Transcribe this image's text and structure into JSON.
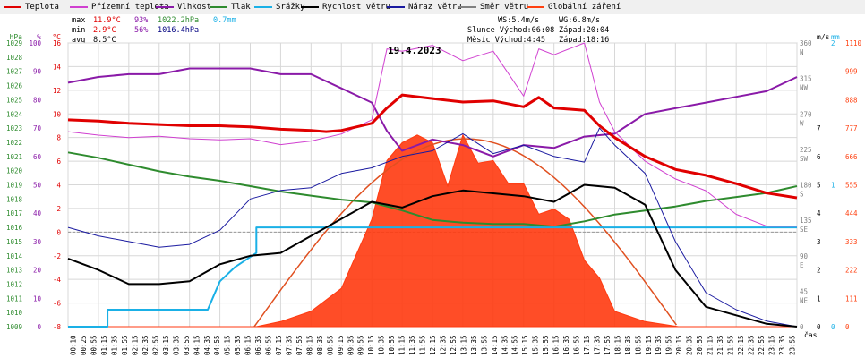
{
  "legend": [
    {
      "label": "Teplota",
      "color": "#e00000"
    },
    {
      "label": "Přízemní teplota",
      "color": "#d040d0"
    },
    {
      "label": "Vlhkost",
      "color": "#8a1aa8"
    },
    {
      "label": "Tlak",
      "color": "#2e8b2e"
    },
    {
      "label": "Srážky",
      "color": "#1ab0e6"
    },
    {
      "label": "Rychlost větru",
      "color": "#000000"
    },
    {
      "label": "Náraz větru",
      "color": "#1a1aa0"
    },
    {
      "label": "Směr větru",
      "color": "#808080"
    },
    {
      "label": "Globální záření",
      "color": "#ff4010"
    }
  ],
  "stats": {
    "max_label": "max",
    "max_temp": "11.9°C",
    "max_hum": "93%",
    "max_press": "1022.2hPa",
    "max_rain": "0.7mm",
    "min_label": "min",
    "min_temp": "2.9°C",
    "min_hum": "56%",
    "min_press": "1016.4hPa",
    "avg_label": "avg",
    "avg_temp": "8.5°C",
    "ws": "WS:5.4m/s",
    "wg": "WG:6.8m/s",
    "sun": "Slunce Východ:06:08",
    "sun_set": "Západ:20:04",
    "moon": "Měsíc Východ:4:45",
    "moon_set": "Západ:18:16"
  },
  "chart_data": {
    "type": "line",
    "title": "19.4.2023",
    "xlabel": "čas",
    "x_ticks": [
      "00:10",
      "00:25",
      "00:55",
      "01:15",
      "01:35",
      "01:55",
      "02:15",
      "02:35",
      "02:55",
      "03:15",
      "03:35",
      "03:55",
      "04:15",
      "04:35",
      "04:55",
      "05:15",
      "05:35",
      "06:15",
      "06:35",
      "06:55",
      "07:15",
      "07:35",
      "07:55",
      "08:15",
      "08:35",
      "08:55",
      "09:15",
      "09:35",
      "09:55",
      "10:15",
      "10:35",
      "10:55",
      "11:15",
      "11:35",
      "11:55",
      "12:15",
      "12:35",
      "12:55",
      "13:15",
      "13:35",
      "13:55",
      "14:15",
      "14:35",
      "14:55",
      "15:15",
      "15:35",
      "15:55",
      "16:15",
      "16:35",
      "16:55",
      "17:15",
      "17:35",
      "17:55",
      "18:15",
      "18:35",
      "18:55",
      "19:15",
      "19:35",
      "19:55",
      "20:15",
      "20:35",
      "20:55",
      "21:15",
      "21:35",
      "21:55",
      "22:15",
      "22:35",
      "22:55",
      "23:15",
      "23:35",
      "23:55"
    ],
    "axes": {
      "pressure": {
        "label": "hPa",
        "range": [
          1009,
          1030
        ],
        "ticks": [
          "1029",
          "1028",
          "1027",
          "1026",
          "1025",
          "1024",
          "1023",
          "1022",
          "1021",
          "1020",
          "1019",
          "1018",
          "1017",
          "1016",
          "1015",
          "1014",
          "1013",
          "1012",
          "1011",
          "1010",
          "1009"
        ],
        "color": "#2e8b2e"
      },
      "humidity": {
        "label": "%",
        "range": [
          0,
          100
        ],
        "ticks": [
          "100",
          "90",
          "80",
          "70",
          "60",
          "50",
          "40",
          "30",
          "20",
          "10",
          "0"
        ],
        "color": "#8a1aa8"
      },
      "temperature": {
        "label": "°C",
        "range": [
          -8,
          16
        ],
        "ticks": [
          "16",
          "14",
          "12",
          "10",
          "8",
          "6",
          "4",
          "2",
          "0",
          "-2",
          "-4",
          "-6",
          "-8"
        ],
        "color": "#e00000"
      },
      "direction": {
        "range": [
          0,
          360
        ],
        "ticks": [
          "360",
          "N",
          "315",
          "NW",
          "270",
          "W",
          "225",
          "SW",
          "180",
          "S",
          "135",
          "SE",
          "90",
          "E",
          "45",
          "NE",
          "0"
        ],
        "color": "#808080"
      },
      "wind": {
        "label": "m/s",
        "range": [
          0,
          10
        ],
        "ticks": [
          "7",
          "6",
          "5",
          "4",
          "3",
          "2",
          "1",
          "0"
        ],
        "color": "#000000"
      },
      "rain": {
        "label": "mm",
        "range": [
          0,
          2
        ],
        "ticks": [
          "2",
          "1",
          "0"
        ],
        "color": "#1ab0e6"
      },
      "radiation": {
        "range": [
          0,
          1110
        ],
        "ticks": [
          "1110",
          "999",
          "888",
          "777",
          "666",
          "555",
          "444",
          "333",
          "222",
          "111",
          "0"
        ],
        "color": "#ff4010"
      }
    },
    "series": [
      {
        "name": "Teplota",
        "unit": "°C",
        "x": [
          0,
          1,
          2,
          3,
          4,
          5,
          6,
          7,
          8,
          8.5,
          9,
          10,
          10.5,
          11,
          12,
          13,
          14,
          15,
          15.5,
          16,
          17,
          17.5,
          18,
          19,
          20,
          21,
          22,
          23,
          24
        ],
        "y": [
          9.5,
          9.4,
          9.2,
          9.1,
          9.0,
          9.0,
          8.9,
          8.7,
          8.6,
          8.5,
          8.6,
          9.2,
          10.5,
          11.6,
          11.3,
          11.0,
          11.1,
          10.6,
          11.4,
          10.5,
          10.3,
          9.0,
          8.0,
          6.4,
          5.3,
          4.8,
          4.1,
          3.3,
          2.9
        ]
      },
      {
        "name": "Přízemní teplota",
        "unit": "°C",
        "x": [
          0,
          1,
          2,
          3,
          4,
          5,
          6,
          7,
          8,
          9,
          10,
          10.5,
          11,
          12,
          13,
          14,
          15,
          15.5,
          16,
          17,
          17.5,
          18,
          19,
          20,
          21,
          22,
          23,
          24
        ],
        "y": [
          8.5,
          8.2,
          8.0,
          8.1,
          7.9,
          7.8,
          7.9,
          7.4,
          7.7,
          8.3,
          9.5,
          15.5,
          15.3,
          15.8,
          14.5,
          15.3,
          11.5,
          15.5,
          15.0,
          16.0,
          11.0,
          8.5,
          6.0,
          4.5,
          3.5,
          1.5,
          0.5,
          0.5
        ]
      },
      {
        "name": "Vlhkost",
        "unit": "%",
        "x": [
          0,
          1,
          2,
          3,
          4,
          5,
          6,
          7,
          8,
          9,
          10,
          10.5,
          11,
          12,
          13,
          14,
          15,
          16,
          17,
          18,
          19,
          20,
          21,
          22,
          23,
          24
        ],
        "y": [
          86,
          88,
          89,
          89,
          91,
          91,
          91,
          89,
          89,
          84,
          79,
          69,
          62,
          66,
          64,
          60,
          64,
          63,
          67,
          68,
          75,
          77,
          79,
          81,
          83,
          88
        ]
      },
      {
        "name": "Tlak",
        "unit": "hPa",
        "x": [
          0,
          1,
          2,
          3,
          4,
          5,
          6,
          7,
          8,
          9,
          10,
          11,
          12,
          13,
          14,
          15,
          16,
          17,
          18,
          19,
          20,
          21,
          22,
          23,
          24
        ],
        "y": [
          1021.9,
          1021.5,
          1021.0,
          1020.5,
          1020.1,
          1019.8,
          1019.4,
          1019.0,
          1018.7,
          1018.4,
          1018.2,
          1017.6,
          1016.9,
          1016.7,
          1016.6,
          1016.6,
          1016.4,
          1016.8,
          1017.3,
          1017.6,
          1017.9,
          1018.3,
          1018.6,
          1018.9,
          1019.4
        ]
      },
      {
        "name": "Srážky",
        "unit": "mm",
        "x": [
          0,
          1.3,
          1.3,
          4.6,
          5.0,
          5.5,
          6.2,
          6.2,
          7,
          24
        ],
        "y": [
          0,
          0,
          0.12,
          0.12,
          0.32,
          0.42,
          0.52,
          0.7,
          0.7,
          0.7
        ]
      },
      {
        "name": "Rychlost větru",
        "unit": "m/s",
        "x": [
          0,
          1,
          2,
          3,
          4,
          5,
          6,
          7,
          8,
          9,
          10,
          11,
          12,
          13,
          14,
          15,
          16,
          17,
          18,
          19,
          20,
          21,
          22,
          23,
          24
        ],
        "y": [
          2.4,
          2.0,
          1.5,
          1.5,
          1.6,
          2.2,
          2.5,
          2.6,
          3.2,
          3.8,
          4.4,
          4.2,
          4.6,
          4.8,
          4.7,
          4.6,
          4.4,
          5.0,
          4.9,
          4.3,
          2.0,
          0.7,
          0.4,
          0.1,
          0.0
        ]
      },
      {
        "name": "Náraz větru",
        "unit": "m/s",
        "x": [
          0,
          1,
          2,
          3,
          4,
          5,
          6,
          7,
          8,
          9,
          10,
          11,
          12,
          13,
          14,
          15,
          16,
          17,
          17.5,
          18,
          19,
          20,
          21,
          22,
          23,
          24
        ],
        "y": [
          3.5,
          3.2,
          3.0,
          2.8,
          2.9,
          3.4,
          4.5,
          4.8,
          4.9,
          5.4,
          5.6,
          6.0,
          6.2,
          6.8,
          6.1,
          6.4,
          6.0,
          5.8,
          7.0,
          6.4,
          5.4,
          3.0,
          1.2,
          0.6,
          0.2,
          0.0
        ]
      },
      {
        "name": "Globální záření",
        "unit": "W/m²",
        "x": [
          0,
          6.2,
          7,
          8,
          9,
          10,
          10.5,
          11,
          11.5,
          12,
          12.5,
          13,
          13.5,
          14,
          14.5,
          15,
          15.5,
          16,
          16.5,
          17,
          17.5,
          18,
          18.5,
          19,
          20.1,
          24
        ],
        "y": [
          0,
          0,
          20,
          60,
          150,
          420,
          650,
          720,
          750,
          720,
          550,
          750,
          640,
          650,
          560,
          560,
          440,
          460,
          420,
          260,
          190,
          60,
          40,
          20,
          0,
          0
        ]
      }
    ]
  }
}
